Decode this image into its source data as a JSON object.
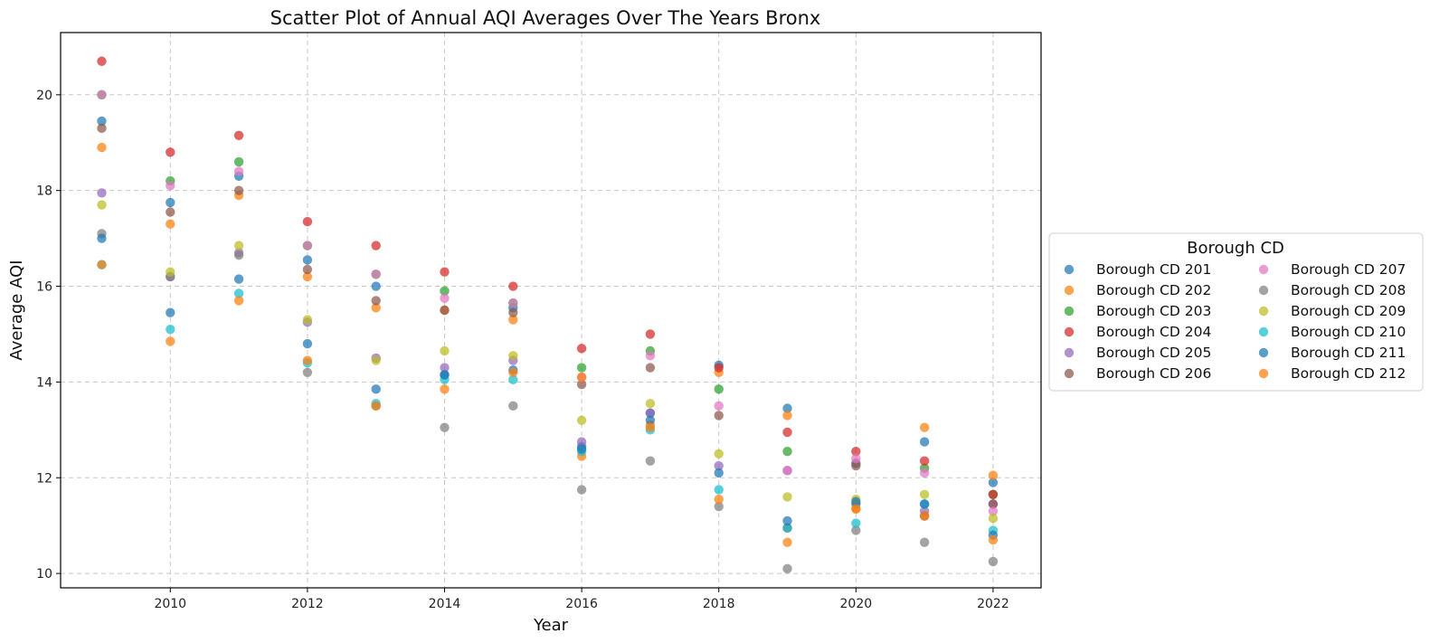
{
  "chart_data": {
    "type": "scatter",
    "title": "Scatter Plot of Annual AQI Averages Over The Years Bronx",
    "xlabel": "Year",
    "ylabel": "Average AQI",
    "xlim": [
      2008.4,
      2022.7
    ],
    "ylim": [
      9.7,
      21.3
    ],
    "xticks": [
      2010,
      2012,
      2014,
      2016,
      2018,
      2020,
      2022
    ],
    "yticks": [
      10,
      12,
      14,
      16,
      18,
      20
    ],
    "grid": true,
    "legend": {
      "title": "Borough CD",
      "placement": "right",
      "columns": 2
    },
    "x": [
      2009,
      2010,
      2011,
      2012,
      2013,
      2014,
      2015,
      2016,
      2017,
      2018,
      2019,
      2020,
      2021,
      2022
    ],
    "series": [
      {
        "name": "Borough CD 201",
        "color": "#1f77b4",
        "values": [
          19.45,
          17.75,
          18.3,
          16.55,
          16.0,
          14.15,
          15.55,
          12.65,
          13.35,
          14.35,
          13.45,
          11.45,
          12.75,
          11.9
        ]
      },
      {
        "name": "Borough CD 202",
        "color": "#ff7f0e",
        "values": [
          18.9,
          17.3,
          17.9,
          16.2,
          15.55,
          15.5,
          15.3,
          12.45,
          13.1,
          14.2,
          13.3,
          11.35,
          13.05,
          12.05
        ]
      },
      {
        "name": "Borough CD 203",
        "color": "#2ca02c",
        "values": [
          20.0,
          18.2,
          18.6,
          16.85,
          16.25,
          15.9,
          15.65,
          14.3,
          14.65,
          13.85,
          12.55,
          12.3,
          12.2,
          11.65
        ]
      },
      {
        "name": "Borough CD 204",
        "color": "#d62728",
        "values": [
          20.7,
          18.8,
          19.15,
          17.35,
          16.85,
          16.3,
          16.0,
          14.7,
          15.0,
          14.3,
          12.95,
          12.55,
          12.35,
          11.65
        ]
      },
      {
        "name": "Borough CD 205",
        "color": "#9467bd",
        "values": [
          17.95,
          16.2,
          16.7,
          15.25,
          14.5,
          14.3,
          14.45,
          12.75,
          13.35,
          12.25,
          12.15,
          12.3,
          11.3,
          11.45
        ]
      },
      {
        "name": "Borough CD 206",
        "color": "#8c564b",
        "values": [
          19.3,
          17.55,
          18.0,
          16.35,
          15.7,
          15.5,
          15.45,
          13.95,
          14.3,
          13.3,
          10.95,
          12.25,
          11.2,
          11.45
        ]
      },
      {
        "name": "Borough CD 207",
        "color": "#e377c2",
        "values": [
          20.0,
          18.1,
          18.4,
          16.85,
          16.25,
          15.75,
          15.65,
          14.1,
          14.55,
          13.5,
          12.15,
          12.4,
          12.1,
          11.3
        ]
      },
      {
        "name": "Borough CD 208",
        "color": "#7f7f7f",
        "values": [
          17.1,
          16.2,
          16.65,
          14.2,
          13.5,
          13.05,
          13.5,
          11.75,
          12.35,
          11.4,
          10.1,
          10.9,
          10.65,
          10.25
        ]
      },
      {
        "name": "Borough CD 209",
        "color": "#bcbd22",
        "values": [
          17.7,
          16.3,
          16.85,
          15.3,
          14.45,
          14.65,
          14.55,
          13.2,
          13.55,
          12.5,
          11.6,
          11.55,
          11.65,
          11.15
        ]
      },
      {
        "name": "Borough CD 210",
        "color": "#17becf",
        "values": [
          16.45,
          15.1,
          15.85,
          14.4,
          13.55,
          14.05,
          14.05,
          12.55,
          13.0,
          11.75,
          10.95,
          11.05,
          11.45,
          10.9
        ]
      },
      {
        "name": "Borough CD 211",
        "color": "#1f77b4",
        "values": [
          17.0,
          15.45,
          16.15,
          14.8,
          13.85,
          14.15,
          14.25,
          12.6,
          13.2,
          12.1,
          11.1,
          11.5,
          11.45,
          10.8
        ]
      },
      {
        "name": "Borough CD 212",
        "color": "#ff7f0e",
        "values": [
          16.45,
          14.85,
          15.7,
          14.45,
          13.5,
          13.85,
          14.2,
          14.1,
          13.05,
          11.55,
          10.65,
          11.35,
          11.2,
          10.7
        ]
      }
    ]
  }
}
